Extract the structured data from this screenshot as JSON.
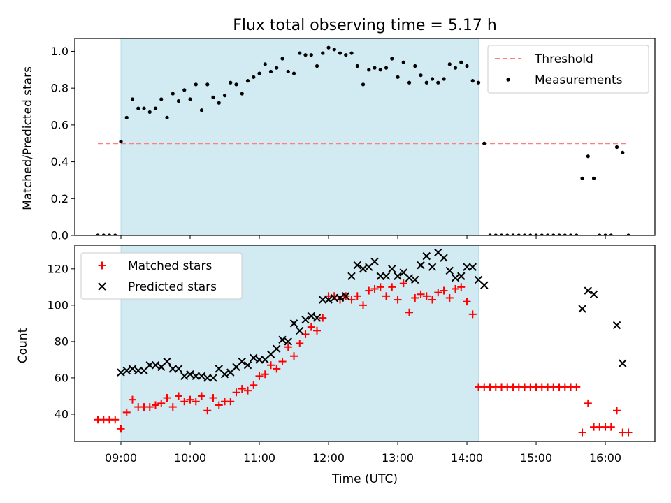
{
  "chart_data": [
    {
      "type": "scatter",
      "title": "Flux total observing time = 5.17 h",
      "xlabel": "",
      "ylabel": "Matched/Predicted stars",
      "ylim": [
        0,
        1.07
      ],
      "yticks": [
        "0.0",
        "0.2",
        "0.4",
        "0.6",
        "0.8",
        "1.0"
      ],
      "ytick_values": [
        0,
        0.2,
        0.4,
        0.6,
        0.8,
        1.0
      ],
      "shaded_span": [
        "09:00",
        "14:10"
      ],
      "shade_color": "#add8e6",
      "legend": {
        "placement": "upper right",
        "entries": [
          "Threshold",
          "Measurements"
        ]
      },
      "threshold": {
        "name": "Threshold",
        "y": 0.5,
        "x_range": [
          "08:40",
          "16:20"
        ],
        "color": "#ff7f7f",
        "style": "dashed"
      },
      "series": [
        {
          "name": "Measurements",
          "color": "#000000",
          "marker": "dot",
          "x": [
            "08:40",
            "08:45",
            "08:50",
            "08:55",
            "09:00",
            "09:05",
            "09:10",
            "09:15",
            "09:20",
            "09:25",
            "09:30",
            "09:35",
            "09:40",
            "09:45",
            "09:50",
            "09:55",
            "10:00",
            "10:05",
            "10:10",
            "10:15",
            "10:20",
            "10:25",
            "10:30",
            "10:35",
            "10:40",
            "10:45",
            "10:50",
            "10:55",
            "11:00",
            "11:05",
            "11:10",
            "11:15",
            "11:20",
            "11:25",
            "11:30",
            "11:35",
            "11:40",
            "11:45",
            "11:50",
            "11:55",
            "12:00",
            "12:05",
            "12:10",
            "12:15",
            "12:20",
            "12:25",
            "12:30",
            "12:35",
            "12:40",
            "12:45",
            "12:50",
            "12:55",
            "13:00",
            "13:05",
            "13:10",
            "13:15",
            "13:20",
            "13:25",
            "13:30",
            "13:35",
            "13:40",
            "13:45",
            "13:50",
            "13:55",
            "14:00",
            "14:05",
            "14:10",
            "14:15",
            "14:20",
            "14:25",
            "14:30",
            "14:35",
            "14:40",
            "14:45",
            "14:50",
            "14:55",
            "15:00",
            "15:05",
            "15:10",
            "15:15",
            "15:20",
            "15:25",
            "15:30",
            "15:35",
            "15:40",
            "15:45",
            "15:50",
            "15:55",
            "16:00",
            "16:05",
            "16:10",
            "16:15",
            "16:20"
          ],
          "y": [
            0,
            0,
            0,
            0,
            0.51,
            0.64,
            0.74,
            0.69,
            0.69,
            0.67,
            0.69,
            0.74,
            0.64,
            0.77,
            0.73,
            0.79,
            0.74,
            0.82,
            0.68,
            0.82,
            0.75,
            0.72,
            0.76,
            0.83,
            0.82,
            0.77,
            0.84,
            0.86,
            0.88,
            0.93,
            0.89,
            0.91,
            0.96,
            0.89,
            0.88,
            0.99,
            0.98,
            0.98,
            0.92,
            0.99,
            1.02,
            1.01,
            0.99,
            0.98,
            0.99,
            0.92,
            0.82,
            0.9,
            0.91,
            0.9,
            0.91,
            0.96,
            0.86,
            0.94,
            0.83,
            0.92,
            0.87,
            0.83,
            0.85,
            0.83,
            0.85,
            0.93,
            0.91,
            0.94,
            0.92,
            0.84,
            0.83,
            0.5,
            0,
            0,
            0,
            0,
            0,
            0,
            0,
            0,
            0,
            0,
            0,
            0,
            0,
            0,
            0,
            0,
            0.31,
            0.43,
            0.31,
            0,
            0,
            0,
            0.48,
            0.45,
            0
          ]
        }
      ]
    },
    {
      "type": "scatter",
      "title": "",
      "xlabel": "Time (UTC)",
      "ylabel": "Count",
      "ylim": [
        25,
        133
      ],
      "yticks": [
        "40",
        "60",
        "80",
        "100",
        "120"
      ],
      "ytick_values": [
        40,
        60,
        80,
        100,
        120
      ],
      "xticks": [
        "09:00",
        "10:00",
        "11:00",
        "12:00",
        "13:00",
        "14:00",
        "15:00",
        "16:00"
      ],
      "shaded_span": [
        "09:00",
        "14:10"
      ],
      "shade_color": "#add8e6",
      "legend": {
        "placement": "upper left",
        "entries": [
          "Matched stars",
          "Predicted stars"
        ]
      },
      "series": [
        {
          "name": "Matched stars",
          "color": "#ff0000",
          "marker": "plus",
          "x": [
            "08:40",
            "08:45",
            "08:50",
            "08:55",
            "09:00",
            "09:05",
            "09:10",
            "09:15",
            "09:20",
            "09:25",
            "09:30",
            "09:35",
            "09:40",
            "09:45",
            "09:50",
            "09:55",
            "10:00",
            "10:05",
            "10:10",
            "10:15",
            "10:20",
            "10:25",
            "10:30",
            "10:35",
            "10:40",
            "10:45",
            "10:50",
            "10:55",
            "11:00",
            "11:05",
            "11:10",
            "11:15",
            "11:20",
            "11:25",
            "11:30",
            "11:35",
            "11:40",
            "11:45",
            "11:50",
            "11:55",
            "12:00",
            "12:05",
            "12:10",
            "12:15",
            "12:20",
            "12:25",
            "12:30",
            "12:35",
            "12:40",
            "12:45",
            "12:50",
            "12:55",
            "13:00",
            "13:05",
            "13:10",
            "13:15",
            "13:20",
            "13:25",
            "13:30",
            "13:35",
            "13:40",
            "13:45",
            "13:50",
            "13:55",
            "14:00",
            "14:05",
            "14:10",
            "14:15",
            "14:20",
            "14:25",
            "14:30",
            "14:35",
            "14:40",
            "14:45",
            "14:50",
            "14:55",
            "15:00",
            "15:05",
            "15:10",
            "15:15",
            "15:20",
            "15:25",
            "15:30",
            "15:35",
            "15:40",
            "15:45",
            "15:50",
            "15:55",
            "16:00",
            "16:05",
            "16:10",
            "16:15",
            "16:20"
          ],
          "y": [
            37,
            37,
            37,
            37,
            32,
            41,
            48,
            44,
            44,
            44,
            45,
            46,
            49,
            44,
            50,
            47,
            48,
            47,
            50,
            42,
            49,
            45,
            47,
            47,
            52,
            54,
            53,
            56,
            61,
            62,
            67,
            65,
            69,
            77,
            72,
            79,
            84,
            88,
            86,
            93,
            105,
            105,
            103,
            105,
            103,
            105,
            100,
            108,
            109,
            110,
            105,
            110,
            103,
            112,
            96,
            104,
            106,
            105,
            103,
            107,
            108,
            104,
            109,
            110,
            102,
            95,
            55,
            55,
            55,
            55,
            55,
            55,
            55,
            55,
            55,
            55,
            55,
            55,
            55,
            55,
            55,
            55,
            55,
            55,
            30,
            46,
            33,
            33,
            33,
            33,
            42,
            30,
            30
          ]
        },
        {
          "name": "Predicted stars",
          "color": "#000000",
          "marker": "x",
          "x": [
            "09:00",
            "09:05",
            "09:10",
            "09:15",
            "09:20",
            "09:25",
            "09:30",
            "09:35",
            "09:40",
            "09:45",
            "09:50",
            "09:55",
            "10:00",
            "10:05",
            "10:10",
            "10:15",
            "10:20",
            "10:25",
            "10:30",
            "10:35",
            "10:40",
            "10:45",
            "10:50",
            "10:55",
            "11:00",
            "11:05",
            "11:10",
            "11:15",
            "11:20",
            "11:25",
            "11:30",
            "11:35",
            "11:40",
            "11:45",
            "11:50",
            "11:55",
            "12:00",
            "12:05",
            "12:10",
            "12:15",
            "12:20",
            "12:25",
            "12:30",
            "12:35",
            "12:40",
            "12:45",
            "12:50",
            "12:55",
            "13:00",
            "13:05",
            "13:10",
            "13:15",
            "13:20",
            "13:25",
            "13:30",
            "13:35",
            "13:40",
            "13:45",
            "13:50",
            "13:55",
            "14:00",
            "14:05",
            "14:10",
            "14:15",
            "15:40",
            "15:45",
            "15:50",
            "16:10",
            "16:15"
          ],
          "y": [
            63,
            64,
            65,
            64,
            64,
            67,
            67,
            66,
            69,
            65,
            65,
            61,
            62,
            61,
            61,
            60,
            60,
            65,
            62,
            63,
            66,
            69,
            67,
            71,
            70,
            70,
            73,
            76,
            81,
            80,
            90,
            86,
            92,
            94,
            93,
            103,
            103,
            104,
            104,
            105,
            116,
            122,
            120,
            121,
            124,
            116,
            116,
            120,
            116,
            118,
            115,
            114,
            122,
            127,
            121,
            129,
            126,
            119,
            115,
            116,
            121,
            121,
            114,
            111,
            98,
            108,
            106,
            89,
            68
          ]
        }
      ]
    }
  ]
}
